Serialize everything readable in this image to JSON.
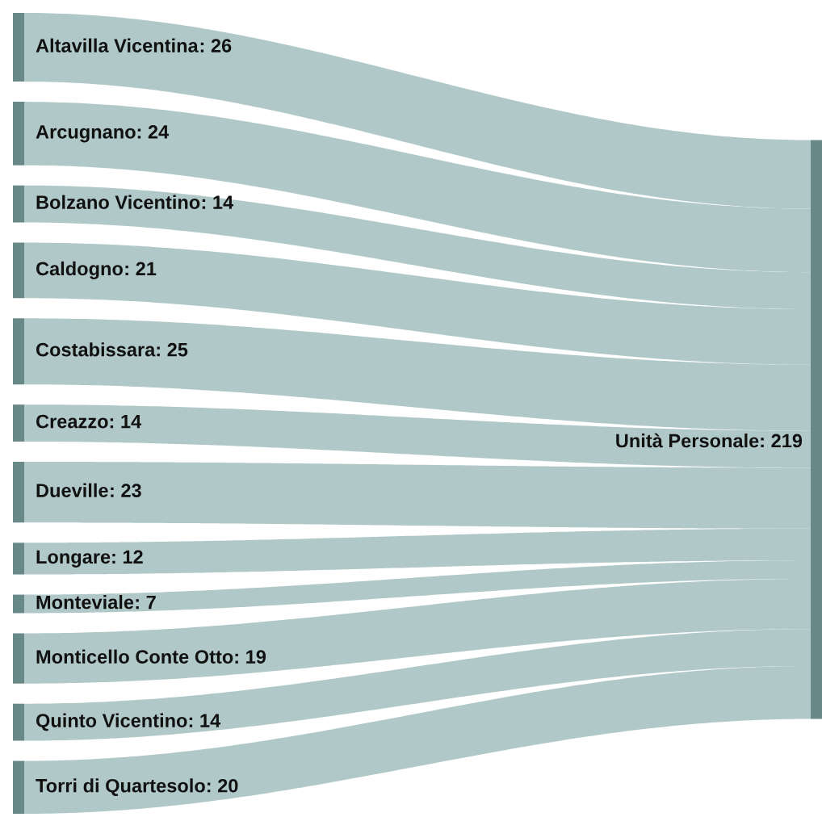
{
  "chart_data": {
    "type": "other",
    "categories": [
      "Altavilla Vicentina",
      "Arcugnano",
      "Bolzano Vicentino",
      "Caldogno",
      "Costabissara",
      "Creazzo",
      "Dueville",
      "Longare",
      "Monteviale",
      "Monticello Conte Otto",
      "Quinto Vicentino",
      "Torri di Quartesolo",
      "Unità Personale"
    ],
    "value_labels": [
      ": 26",
      ": 24",
      ": 14",
      ": 21",
      ": 25",
      ": 14",
      ": 23",
      ": 12",
      ": 7",
      ": 19",
      ": 14",
      ": 20",
      ": 219"
    ],
    "values": [
      26,
      24,
      14,
      21,
      25,
      14,
      23,
      12,
      7,
      19,
      14,
      20,
      219
    ],
    "colors": [
      "#b0c9c8",
      "#b0c9c8",
      "#b0c9c8",
      "#b0c9c8",
      "#b0c9c8",
      "#b0c9c8",
      "#b0c9c8",
      "#b0c9c8",
      "#b0c9c8",
      "#b0c9c8",
      "#b0c9c8",
      "#b0c9c8",
      "#b0c9c8"
    ]
  }
}
